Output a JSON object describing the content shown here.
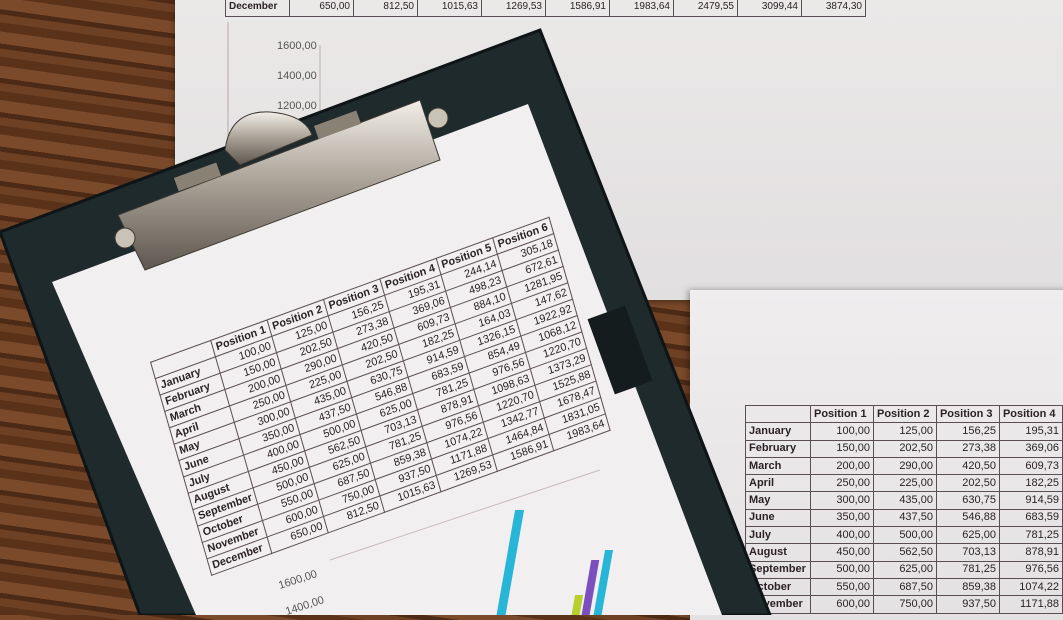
{
  "scene": "clipboard with spreadsheet and bar charts on wooden desk",
  "colors": {
    "wood": "#5a3219",
    "board": "#1f2a2c",
    "paper": "#ebe8e8",
    "bar_blue": "#2f86d0",
    "bar_red": "#e23a2f",
    "bar_yellow": "#b9cf2a",
    "bar_purple": "#7b4fbd",
    "bar_cyan": "#27b5d8"
  },
  "top_paper": {
    "december_row": [
      "December",
      "650,00",
      "812,50",
      "1015,63",
      "1269,53",
      "1586,91",
      "1983,64",
      "2479,55",
      "3099,44",
      "3874,30"
    ],
    "axis_labels": [
      "1600,00",
      "1400,00",
      "1200,00"
    ]
  },
  "clipboard_table": {
    "headers": [
      "",
      "Position 1",
      "Position 2",
      "Position 3",
      "Position 4",
      "Position 5",
      "Position 6"
    ],
    "rows": [
      [
        "January",
        "100,00",
        "125,00",
        "156,25",
        "195,31",
        "244,14",
        "305,18"
      ],
      [
        "February",
        "150,00",
        "202,50",
        "273,38",
        "369,06",
        "498,23",
        "672,61"
      ],
      [
        "March",
        "200,00",
        "290,00",
        "420,50",
        "609,73",
        "884,10",
        "1281,95"
      ],
      [
        "April",
        "250,00",
        "225,00",
        "202,50",
        "182,25",
        "164,03",
        "147,62"
      ],
      [
        "May",
        "300,00",
        "435,00",
        "630,75",
        "914,59",
        "1326,15",
        "1922,92"
      ],
      [
        "June",
        "350,00",
        "437,50",
        "546,88",
        "683,59",
        "854,49",
        "1068,12"
      ],
      [
        "July",
        "400,00",
        "500,00",
        "625,00",
        "781,25",
        "976,56",
        "1220,70"
      ],
      [
        "August",
        "450,00",
        "562,50",
        "703,13",
        "878,91",
        "1098,63",
        "1373,29"
      ],
      [
        "September",
        "500,00",
        "625,00",
        "781,25",
        "976,56",
        "1220,70",
        "1525,88"
      ],
      [
        "October",
        "550,00",
        "687,50",
        "859,38",
        "1074,22",
        "1342,77",
        "1678,47"
      ],
      [
        "November",
        "600,00",
        "750,00",
        "937,50",
        "1171,88",
        "1464,84",
        "1831,05"
      ],
      [
        "December",
        "650,00",
        "812,50",
        "1015,63",
        "1269,53",
        "1586,91",
        "1983,64"
      ]
    ],
    "axis_labels": [
      "1600,00",
      "1400,00"
    ]
  },
  "right_table": {
    "headers": [
      "",
      "Position 1",
      "Position 2",
      "Position 3",
      "Position 4"
    ],
    "rows": [
      [
        "January",
        "100,00",
        "125,00",
        "156,25",
        "195,31"
      ],
      [
        "February",
        "150,00",
        "202,50",
        "273,38",
        "369,06"
      ],
      [
        "March",
        "200,00",
        "290,00",
        "420,50",
        "609,73"
      ],
      [
        "April",
        "250,00",
        "225,00",
        "202,50",
        "182,25"
      ],
      [
        "May",
        "300,00",
        "435,00",
        "630,75",
        "914,59"
      ],
      [
        "June",
        "350,00",
        "437,50",
        "546,88",
        "683,59"
      ],
      [
        "July",
        "400,00",
        "500,00",
        "625,00",
        "781,25"
      ],
      [
        "August",
        "450,00",
        "562,50",
        "703,13",
        "878,91"
      ],
      [
        "September",
        "500,00",
        "625,00",
        "781,25",
        "976,56"
      ],
      [
        "October",
        "550,00",
        "687,50",
        "859,38",
        "1074,22"
      ],
      [
        "November",
        "600,00",
        "750,00",
        "937,50",
        "1171,88"
      ]
    ]
  }
}
